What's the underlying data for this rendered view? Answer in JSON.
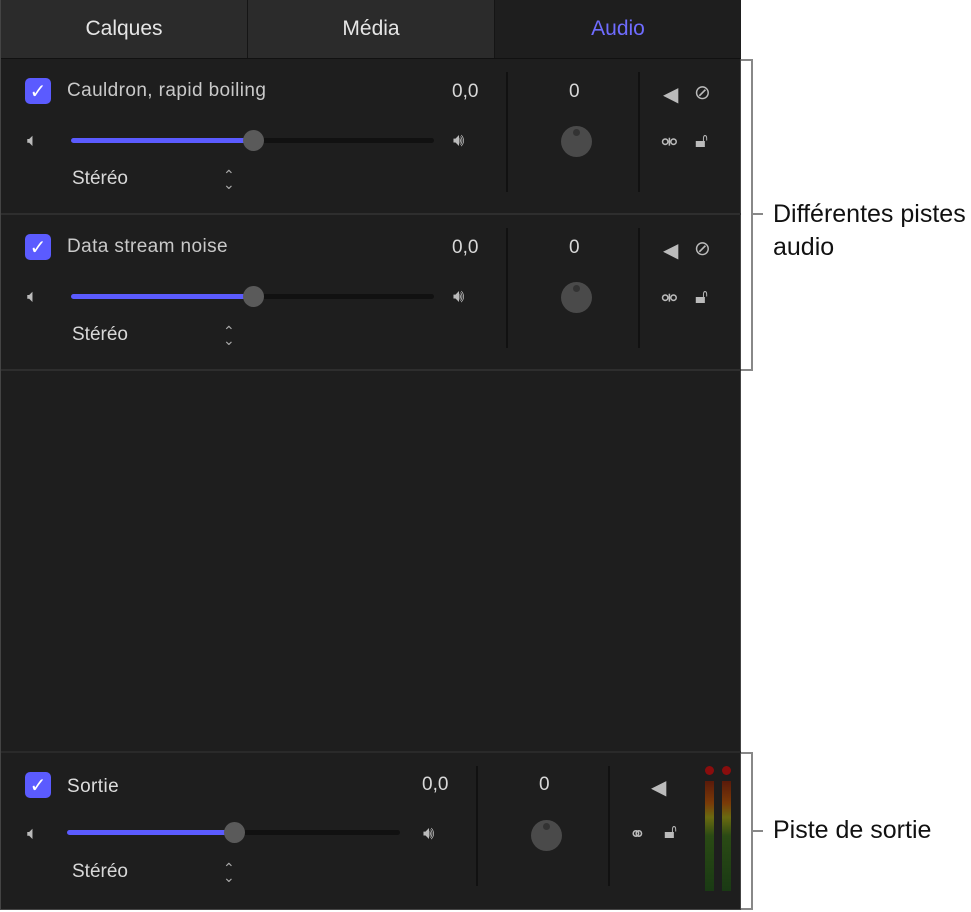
{
  "tabs": [
    {
      "label": "Calques"
    },
    {
      "label": "Média"
    },
    {
      "label": "Audio",
      "active": true
    }
  ],
  "tracks": [
    {
      "name": "Cauldron, rapid boiling",
      "checked": true,
      "level": "0,0",
      "volume_fraction": 0.5,
      "mode": "Stéréo",
      "pan": "0"
    },
    {
      "name": "Data stream noise",
      "checked": true,
      "level": "0,0",
      "volume_fraction": 0.5,
      "mode": "Stéréo",
      "pan": "0"
    }
  ],
  "output": {
    "name": "Sortie",
    "checked": true,
    "level": "0,0",
    "volume_fraction": 0.5,
    "mode": "Stéréo",
    "pan": "0"
  },
  "annotations": {
    "tracks": "Différentes pistes audio",
    "output": "Piste de sortie"
  },
  "colors": {
    "accent": "#5b5bff",
    "panel": "#1e1e1e"
  }
}
